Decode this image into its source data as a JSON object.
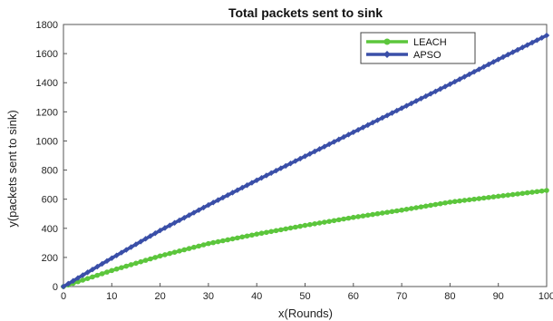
{
  "chart_data": {
    "type": "line",
    "title": "Total packets sent to sink",
    "xlabel": "x(Rounds)",
    "ylabel": "y(packets sent to sink)",
    "xlim": [
      0,
      100
    ],
    "ylim": [
      0,
      1800
    ],
    "xticks": [
      0,
      10,
      20,
      30,
      40,
      50,
      60,
      70,
      80,
      90,
      100
    ],
    "xtick_labels": [
      "0",
      "10",
      "20",
      "30",
      "40",
      "50",
      "60",
      "70",
      "80",
      "90",
      "100"
    ],
    "yticks": [
      0,
      200,
      400,
      600,
      800,
      1000,
      1200,
      1400,
      1600,
      1800
    ],
    "ytick_labels": [
      "0",
      "200",
      "400",
      "600",
      "800",
      "1000",
      "1200",
      "1400",
      "1600",
      "1800"
    ],
    "grid": false,
    "legend_position": "top-right",
    "series": [
      {
        "name": "LEACH",
        "color": "#5cc63c",
        "marker": "circle",
        "x": [
          0,
          10,
          20,
          30,
          40,
          50,
          60,
          70,
          80,
          90,
          100
        ],
        "y": [
          0,
          110,
          210,
          295,
          360,
          420,
          475,
          525,
          580,
          620,
          660
        ]
      },
      {
        "name": "APSO",
        "color": "#3a4fa8",
        "marker": "diamond",
        "x": [
          0,
          10,
          20,
          30,
          40,
          50,
          60,
          70,
          80,
          90,
          100
        ],
        "y": [
          0,
          195,
          385,
          560,
          730,
          895,
          1060,
          1225,
          1390,
          1560,
          1725
        ]
      }
    ]
  }
}
